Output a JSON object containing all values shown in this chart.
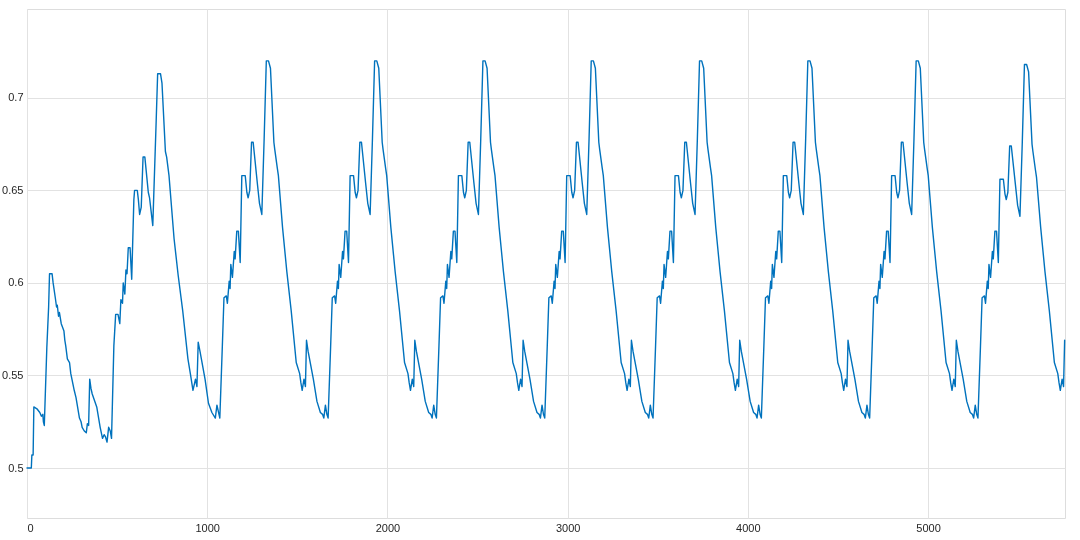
{
  "chart_data": {
    "type": "line",
    "x": [
      0,
      24,
      27,
      34,
      38,
      55,
      71,
      80,
      88,
      91,
      96,
      110,
      120,
      125,
      139,
      145,
      157,
      164,
      168,
      175,
      180,
      190,
      205,
      210,
      215,
      224,
      236,
      243,
      262,
      272,
      291,
      300,
      306,
      318,
      329,
      335,
      342,
      348,
      355,
      362,
      387,
      406,
      419,
      428,
      435,
      444,
      453,
      462,
      469,
      482,
      492,
      505,
      515,
      521,
      530,
      534,
      543,
      549,
      555,
      562,
      572,
      581,
      593,
      597,
      612,
      618,
      625,
      634,
      644,
      654,
      662,
      673,
      680,
      686,
      698,
      717,
      725,
      741,
      749,
      768,
      775,
      788,
      816,
      839,
      864,
      893,
      908,
      921,
      935,
      943,
      950,
      960,
      988,
      1007,
      1026,
      1045,
      1054,
      1070,
      1084,
      1093,
      1106,
      1112,
      1122,
      1127,
      1131,
      1140,
      1150,
      1155,
      1164,
      1173,
      1183,
      1192,
      1211,
      1220,
      1227,
      1236,
      1246,
      1255,
      1278,
      1290,
      1303,
      1316,
      1328,
      1340,
      1351,
      1370,
      1375,
      1389,
      1395,
      1418,
      1442,
      1466,
      1494,
      1513,
      1520,
      1527,
      1537,
      1545,
      1551,
      1560,
      1589,
      1609,
      1628,
      1640,
      1647,
      1656,
      1664,
      1671,
      1685,
      1694,
      1707,
      1713,
      1723,
      1728,
      1732,
      1741,
      1751,
      1756,
      1765,
      1774,
      1784,
      1793,
      1812,
      1821,
      1828,
      1837,
      1847,
      1856,
      1879,
      1891,
      1904,
      1917,
      1929,
      1941,
      1952,
      1971,
      1976,
      1990,
      1996,
      2019,
      2043,
      2067,
      2095,
      2114,
      2121,
      2128,
      2138,
      2146,
      2152,
      2161,
      2190,
      2210,
      2229,
      2241,
      2248,
      2257,
      2265,
      2272,
      2286,
      2295,
      2308,
      2314,
      2324,
      2329,
      2333,
      2342,
      2352,
      2357,
      2366,
      2375,
      2385,
      2394,
      2413,
      2422,
      2429,
      2438,
      2448,
      2457,
      2480,
      2492,
      2505,
      2518,
      2530,
      2542,
      2553,
      2572,
      2577,
      2591,
      2597,
      2620,
      2644,
      2668,
      2696,
      2715,
      2722,
      2729,
      2739,
      2747,
      2753,
      2762,
      2791,
      2811,
      2830,
      2842,
      2849,
      2858,
      2866,
      2873,
      2887,
      2896,
      2909,
      2915,
      2925,
      2930,
      2934,
      2943,
      2953,
      2958,
      2967,
      2976,
      2986,
      2995,
      3014,
      3023,
      3030,
      3039,
      3049,
      3058,
      3081,
      3093,
      3106,
      3119,
      3131,
      3143,
      3154,
      3173,
      3178,
      3192,
      3198,
      3221,
      3245,
      3269,
      3297,
      3316,
      3323,
      3330,
      3340,
      3348,
      3354,
      3363,
      3392,
      3412,
      3431,
      3443,
      3450,
      3459,
      3467,
      3474,
      3488,
      3497,
      3510,
      3516,
      3526,
      3531,
      3535,
      3544,
      3554,
      3559,
      3568,
      3577,
      3587,
      3596,
      3615,
      3624,
      3631,
      3640,
      3650,
      3659,
      3682,
      3694,
      3707,
      3720,
      3732,
      3744,
      3755,
      3774,
      3779,
      3793,
      3799,
      3822,
      3846,
      3870,
      3898,
      3917,
      3924,
      3931,
      3941,
      3949,
      3955,
      3964,
      3993,
      4013,
      4032,
      4044,
      4051,
      4060,
      4068,
      4075,
      4089,
      4098,
      4111,
      4117,
      4127,
      4132,
      4136,
      4145,
      4155,
      4160,
      4169,
      4178,
      4188,
      4197,
      4216,
      4225,
      4232,
      4241,
      4251,
      4260,
      4283,
      4295,
      4308,
      4321,
      4333,
      4345,
      4356,
      4375,
      4380,
      4394,
      4400,
      4423,
      4447,
      4471,
      4499,
      4518,
      4525,
      4532,
      4542,
      4550,
      4556,
      4565,
      4594,
      4614,
      4633,
      4645,
      4652,
      4661,
      4669,
      4676,
      4690,
      4699,
      4712,
      4718,
      4728,
      4733,
      4737,
      4746,
      4756,
      4761,
      4770,
      4779,
      4789,
      4798,
      4817,
      4826,
      4833,
      4842,
      4852,
      4861,
      4884,
      4896,
      4909,
      4922,
      4934,
      4946,
      4957,
      4976,
      4981,
      4995,
      5001,
      5024,
      5048,
      5072,
      5100,
      5119,
      5126,
      5133,
      5143,
      5151,
      5157,
      5166,
      5195,
      5215,
      5234,
      5246,
      5253,
      5262,
      5270,
      5277,
      5291,
      5300,
      5313,
      5319,
      5329,
      5334,
      5338,
      5347,
      5357,
      5362,
      5371,
      5380,
      5390,
      5399,
      5418,
      5427,
      5434,
      5443,
      5453,
      5462,
      5485,
      5497,
      5510,
      5523,
      5535,
      5547,
      5558,
      5577,
      5582,
      5596,
      5602,
      5625,
      5649,
      5673,
      5701,
      5720,
      5727,
      5734,
      5744,
      5752,
      5758
    ],
    "series": [
      {
        "color": "#0072bd",
        "values": [
          0.5,
          0.5,
          0.507,
          0.507,
          0.533,
          0.532,
          0.53,
          0.528,
          0.529,
          0.525,
          0.523,
          0.565,
          0.587,
          0.605,
          0.605,
          0.6,
          0.592,
          0.587,
          0.588,
          0.582,
          0.584,
          0.578,
          0.574,
          0.569,
          0.566,
          0.559,
          0.557,
          0.551,
          0.542,
          0.538,
          0.527,
          0.525,
          0.522,
          0.52,
          0.519,
          0.524,
          0.523,
          0.548,
          0.543,
          0.54,
          0.533,
          0.522,
          0.516,
          0.518,
          0.517,
          0.514,
          0.522,
          0.52,
          0.516,
          0.566,
          0.583,
          0.583,
          0.578,
          0.591,
          0.589,
          0.6,
          0.594,
          0.607,
          0.605,
          0.619,
          0.619,
          0.602,
          0.645,
          0.65,
          0.65,
          0.645,
          0.637,
          0.641,
          0.668,
          0.668,
          0.66,
          0.649,
          0.646,
          0.641,
          0.631,
          0.688,
          0.713,
          0.713,
          0.708,
          0.671,
          0.668,
          0.658,
          0.624,
          0.604,
          0.585,
          0.559,
          0.55,
          0.542,
          0.548,
          0.544,
          0.568,
          0.563,
          0.548,
          0.535,
          0.53,
          0.527,
          0.534,
          0.527,
          0.566,
          0.592,
          0.593,
          0.589,
          0.601,
          0.597,
          0.61,
          0.603,
          0.617,
          0.613,
          0.628,
          0.628,
          0.611,
          0.658,
          0.658,
          0.649,
          0.646,
          0.65,
          0.676,
          0.676,
          0.654,
          0.643,
          0.637,
          0.678,
          0.72,
          0.72,
          0.716,
          0.676,
          0.672,
          0.662,
          0.658,
          0.63,
          0.606,
          0.585,
          0.557,
          0.551,
          0.546,
          0.542,
          0.548,
          0.544,
          0.569,
          0.563,
          0.548,
          0.536,
          0.53,
          0.529,
          0.527,
          0.534,
          0.529,
          0.527,
          0.566,
          0.592,
          0.593,
          0.589,
          0.601,
          0.597,
          0.61,
          0.603,
          0.617,
          0.613,
          0.628,
          0.628,
          0.611,
          0.658,
          0.658,
          0.649,
          0.646,
          0.65,
          0.676,
          0.676,
          0.654,
          0.643,
          0.637,
          0.678,
          0.72,
          0.72,
          0.716,
          0.676,
          0.672,
          0.662,
          0.658,
          0.63,
          0.606,
          0.585,
          0.557,
          0.551,
          0.546,
          0.542,
          0.548,
          0.544,
          0.569,
          0.563,
          0.548,
          0.536,
          0.53,
          0.529,
          0.527,
          0.534,
          0.529,
          0.527,
          0.566,
          0.592,
          0.593,
          0.589,
          0.601,
          0.597,
          0.61,
          0.603,
          0.617,
          0.613,
          0.628,
          0.628,
          0.611,
          0.658,
          0.658,
          0.649,
          0.646,
          0.65,
          0.676,
          0.676,
          0.654,
          0.643,
          0.637,
          0.678,
          0.72,
          0.72,
          0.716,
          0.676,
          0.672,
          0.662,
          0.658,
          0.63,
          0.606,
          0.585,
          0.557,
          0.551,
          0.546,
          0.542,
          0.548,
          0.544,
          0.569,
          0.563,
          0.548,
          0.536,
          0.53,
          0.529,
          0.527,
          0.534,
          0.529,
          0.527,
          0.566,
          0.592,
          0.593,
          0.589,
          0.601,
          0.597,
          0.61,
          0.603,
          0.617,
          0.613,
          0.628,
          0.628,
          0.611,
          0.658,
          0.658,
          0.649,
          0.646,
          0.65,
          0.676,
          0.676,
          0.654,
          0.643,
          0.637,
          0.678,
          0.72,
          0.72,
          0.716,
          0.676,
          0.672,
          0.662,
          0.658,
          0.63,
          0.606,
          0.585,
          0.557,
          0.551,
          0.546,
          0.542,
          0.548,
          0.544,
          0.569,
          0.563,
          0.548,
          0.536,
          0.53,
          0.529,
          0.527,
          0.534,
          0.529,
          0.527,
          0.566,
          0.592,
          0.593,
          0.589,
          0.601,
          0.597,
          0.61,
          0.603,
          0.617,
          0.613,
          0.628,
          0.628,
          0.611,
          0.658,
          0.658,
          0.649,
          0.646,
          0.65,
          0.676,
          0.676,
          0.654,
          0.643,
          0.637,
          0.678,
          0.72,
          0.72,
          0.716,
          0.676,
          0.672,
          0.662,
          0.658,
          0.63,
          0.606,
          0.585,
          0.557,
          0.551,
          0.546,
          0.542,
          0.548,
          0.544,
          0.569,
          0.563,
          0.548,
          0.536,
          0.53,
          0.529,
          0.527,
          0.534,
          0.529,
          0.527,
          0.566,
          0.592,
          0.593,
          0.589,
          0.601,
          0.597,
          0.61,
          0.603,
          0.617,
          0.613,
          0.628,
          0.628,
          0.611,
          0.658,
          0.658,
          0.649,
          0.646,
          0.65,
          0.676,
          0.676,
          0.654,
          0.643,
          0.637,
          0.678,
          0.72,
          0.72,
          0.716,
          0.676,
          0.672,
          0.662,
          0.658,
          0.63,
          0.606,
          0.585,
          0.557,
          0.551,
          0.546,
          0.542,
          0.548,
          0.544,
          0.569,
          0.563,
          0.548,
          0.536,
          0.53,
          0.529,
          0.527,
          0.534,
          0.529,
          0.527,
          0.566,
          0.592,
          0.593,
          0.589,
          0.601,
          0.597,
          0.61,
          0.603,
          0.617,
          0.613,
          0.628,
          0.628,
          0.611,
          0.658,
          0.658,
          0.649,
          0.646,
          0.65,
          0.676,
          0.676,
          0.654,
          0.643,
          0.637,
          0.678,
          0.72,
          0.72,
          0.716,
          0.676,
          0.672,
          0.662,
          0.658,
          0.63,
          0.606,
          0.585,
          0.557,
          0.551,
          0.546,
          0.542,
          0.548,
          0.544,
          0.569,
          0.563,
          0.548,
          0.536,
          0.53,
          0.529,
          0.527,
          0.534,
          0.529,
          0.527,
          0.566,
          0.592,
          0.593,
          0.589,
          0.601,
          0.597,
          0.61,
          0.603,
          0.617,
          0.613,
          0.628,
          0.628,
          0.611,
          0.656,
          0.656,
          0.648,
          0.645,
          0.649,
          0.674,
          0.674,
          0.653,
          0.642,
          0.636,
          0.676,
          0.718,
          0.718,
          0.714,
          0.675,
          0.671,
          0.661,
          0.657,
          0.63,
          0.606,
          0.585,
          0.557,
          0.551,
          0.546,
          0.542,
          0.548,
          0.544,
          0.569
        ]
      }
    ],
    "xlim": [
      0,
      5760
    ],
    "ylim": [
      0.473,
      0.748
    ],
    "xticks": [
      0,
      1000,
      2000,
      3000,
      4000,
      5000
    ],
    "yticks": [
      0.5,
      0.55,
      0.6,
      0.65,
      0.7
    ],
    "grid": true,
    "line_style": "solid"
  }
}
